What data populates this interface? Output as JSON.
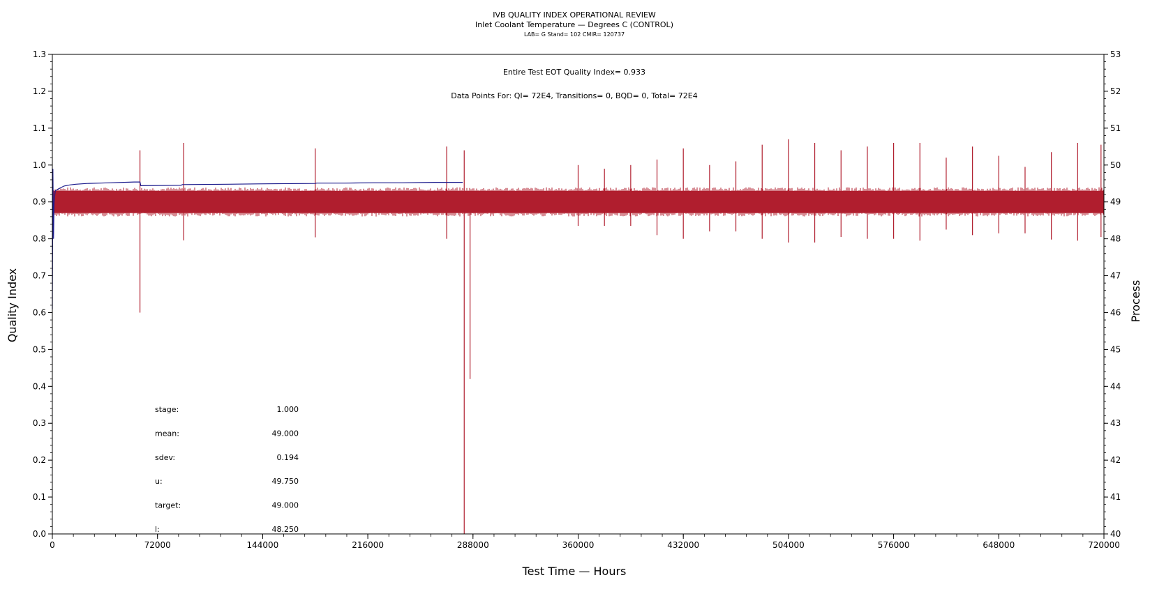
{
  "chart_data": {
    "type": "line",
    "title": "IVB QUALITY INDEX OPERATIONAL REVIEW",
    "subtitle": "Inlet Coolant Temperature — Degrees C (CONTROL)",
    "subtitle2": "LAB= G Stand= 102 CMIR= 120737",
    "annotations": [
      "Entire Test EOT Quality Index=   0.933",
      "Data Points For: QI=  72E4, Transitions=     0, BQD=     0, Total=  72E4"
    ],
    "xlabel": "Test Time — Hours",
    "ylabel": "Quality Index",
    "y2label": "Process",
    "xlim": [
      0,
      720000
    ],
    "ylim": [
      0,
      1.3
    ],
    "y2lim": [
      40,
      53
    ],
    "xticks": [
      0,
      72000,
      144000,
      216000,
      288000,
      360000,
      432000,
      504000,
      576000,
      648000,
      720000
    ],
    "xtick_labels": [
      "0",
      "72000",
      "144000",
      "216000",
      "288000",
      "360000",
      "432000",
      "504000",
      "576000",
      "648000",
      "720000"
    ],
    "yticks": [
      0,
      0.1,
      0.2,
      0.3,
      0.4,
      0.5,
      0.6,
      0.7,
      0.8,
      0.9,
      1.0,
      1.1,
      1.2,
      1.3
    ],
    "ytick_labels": [
      "0.0",
      "0.1",
      "0.2",
      "0.3",
      "0.4",
      "0.5",
      "0.6",
      "0.7",
      "0.8",
      "0.9",
      "1.0",
      "1.1",
      "1.2",
      "1.3"
    ],
    "y2ticks": [
      40,
      41,
      42,
      43,
      44,
      45,
      46,
      47,
      48,
      49,
      50,
      51,
      52,
      53
    ],
    "y2tick_labels": [
      "40",
      "41",
      "42",
      "43",
      "44",
      "45",
      "46",
      "47",
      "48",
      "49",
      "50",
      "51",
      "52",
      "53"
    ],
    "series": [
      {
        "axis": "left",
        "color": "#1a1a8c",
        "x": [
          0,
          400,
          800,
          1200,
          2000,
          4000,
          8000,
          12000,
          16000,
          24000,
          40000,
          56000,
          60000,
          60600,
          88000,
          89000,
          120000,
          140000,
          180000,
          181000,
          200000,
          220000,
          240000,
          262000,
          263000,
          274000,
          281000
        ],
        "values": [
          0.61,
          0.99,
          0.8,
          0.9,
          0.93,
          0.935,
          0.943,
          0.946,
          0.948,
          0.95,
          0.952,
          0.954,
          0.954,
          0.944,
          0.945,
          0.947,
          0.948,
          0.949,
          0.95,
          0.951,
          0.951,
          0.952,
          0.952,
          0.953,
          0.953,
          0.953,
          0.953
        ]
      },
      {
        "axis": "right",
        "color": "#b01e2e",
        "band_low": 48.7,
        "band_high": 49.3,
        "band_x": [
          0,
          720000
        ],
        "spikes_x": [
          60000,
          90000,
          180000,
          270000,
          282000,
          286000,
          360000,
          378000,
          396000,
          414000,
          432000,
          450000,
          468000,
          486000,
          504000,
          522000,
          540000,
          558000,
          576000,
          594000,
          612000,
          630000,
          648000,
          666000,
          684000,
          702000,
          718000
        ],
        "spikes_high": [
          50.4,
          50.6,
          50.45,
          50.5,
          50.4,
          49.2,
          50.0,
          49.9,
          50.0,
          50.15,
          50.45,
          50.0,
          50.1,
          50.55,
          50.7,
          50.6,
          50.4,
          50.5,
          50.6,
          50.6,
          50.2,
          50.5,
          50.25,
          49.95,
          50.35,
          50.6,
          50.55
        ],
        "spikes_low": [
          46.0,
          47.96,
          48.04,
          48.0,
          40.0,
          44.2,
          48.35,
          48.35,
          48.35,
          48.1,
          48.0,
          48.2,
          48.2,
          48.0,
          47.9,
          47.9,
          48.05,
          48.0,
          48.0,
          47.95,
          48.25,
          48.1,
          48.15,
          48.15,
          47.98,
          47.95,
          48.05
        ]
      }
    ]
  },
  "stats": [
    {
      "label": "stage:",
      "value": "1.000"
    },
    {
      "label": "mean:",
      "value": "49.000"
    },
    {
      "label": "sdev:",
      "value": "0.194"
    },
    {
      "label": "u:",
      "value": "49.750"
    },
    {
      "label": "target:",
      "value": "49.000"
    },
    {
      "label": "l:",
      "value": "48.250"
    }
  ]
}
